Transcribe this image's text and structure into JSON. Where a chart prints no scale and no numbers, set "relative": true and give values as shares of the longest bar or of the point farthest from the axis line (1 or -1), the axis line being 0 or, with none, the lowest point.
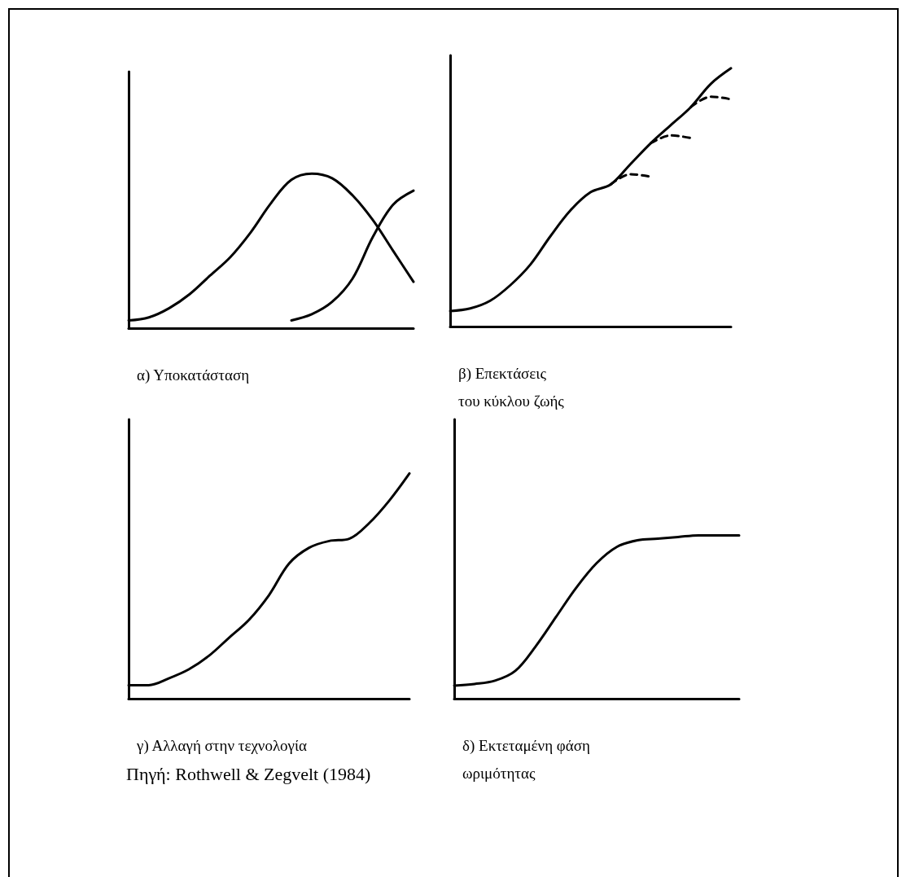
{
  "chart_data": [
    {
      "type": "line",
      "title": "α) Υποκατάσταση",
      "relative": true,
      "categories": [
        null,
        null,
        null,
        null,
        null,
        null,
        null,
        null,
        null,
        null,
        null,
        null,
        null,
        null,
        null
      ],
      "series": [
        {
          "color": "#000000",
          "values": [
            0.05,
            0.07,
            0.13,
            0.22,
            0.34,
            0.46,
            0.62,
            0.81,
            0.96,
            1,
            0.97,
            0.86,
            0.7,
            0.5,
            0.3
          ]
        },
        {
          "color": "#000000",
          "values": [
            null,
            null,
            null,
            null,
            null,
            null,
            null,
            null,
            0.05,
            0.09,
            0.17,
            0.32,
            0.59,
            0.8,
            0.89
          ]
        }
      ]
    },
    {
      "type": "line",
      "title": "β) Επεκτάσεις του κύκλου ζωής",
      "relative": true,
      "categories": [
        null,
        null,
        null,
        null,
        null,
        null,
        null,
        null,
        null,
        null,
        null,
        null,
        null,
        null,
        null
      ],
      "series": [
        {
          "color": "#000000",
          "values": [
            0.06,
            0.07,
            0.1,
            0.16,
            0.24,
            0.35,
            0.45,
            0.52,
            0.55,
            0.63,
            0.71,
            0.78,
            0.85,
            0.94,
            1
          ]
        },
        {
          "color": "#000000",
          "line_style": "dashed",
          "values": [
            null,
            null,
            null,
            null,
            null,
            null,
            null,
            null,
            0.55,
            0.59,
            0.58,
            null,
            null,
            null,
            null
          ]
        },
        {
          "color": "#000000",
          "line_style": "dashed",
          "values": [
            null,
            null,
            null,
            null,
            null,
            null,
            null,
            null,
            null,
            null,
            0.71,
            0.74,
            0.73,
            null,
            null
          ]
        },
        {
          "color": "#000000",
          "line_style": "dashed",
          "values": [
            null,
            null,
            null,
            null,
            null,
            null,
            null,
            null,
            null,
            null,
            null,
            null,
            0.85,
            0.89,
            0.88
          ]
        }
      ]
    },
    {
      "type": "line",
      "title": "γ) Αλλαγή στην τεχνολογία",
      "relative": true,
      "categories": [
        null,
        null,
        null,
        null,
        null,
        null,
        null,
        null,
        null,
        null,
        null,
        null,
        null,
        null,
        null
      ],
      "series": [
        {
          "color": "#000000",
          "values": [
            0.06,
            0.06,
            0.09,
            0.13,
            0.19,
            0.27,
            0.35,
            0.46,
            0.6,
            0.67,
            0.7,
            0.71,
            0.78,
            0.88,
            1
          ]
        }
      ]
    },
    {
      "type": "line",
      "title": "δ) Εκτεταμένη φάση ωριμότητας",
      "relative": true,
      "categories": [
        null,
        null,
        null,
        null,
        null,
        null,
        null,
        null,
        null,
        null,
        null,
        null,
        null,
        null,
        null
      ],
      "annotations": [
        "Πηγή: Rothwell & Zegvelt (1984)"
      ],
      "series": [
        {
          "color": "#000000",
          "values": [
            0.08,
            0.09,
            0.11,
            0.17,
            0.32,
            0.5,
            0.68,
            0.83,
            0.93,
            0.97,
            0.98,
            0.99,
            1,
            1,
            1
          ]
        }
      ]
    }
  ]
}
